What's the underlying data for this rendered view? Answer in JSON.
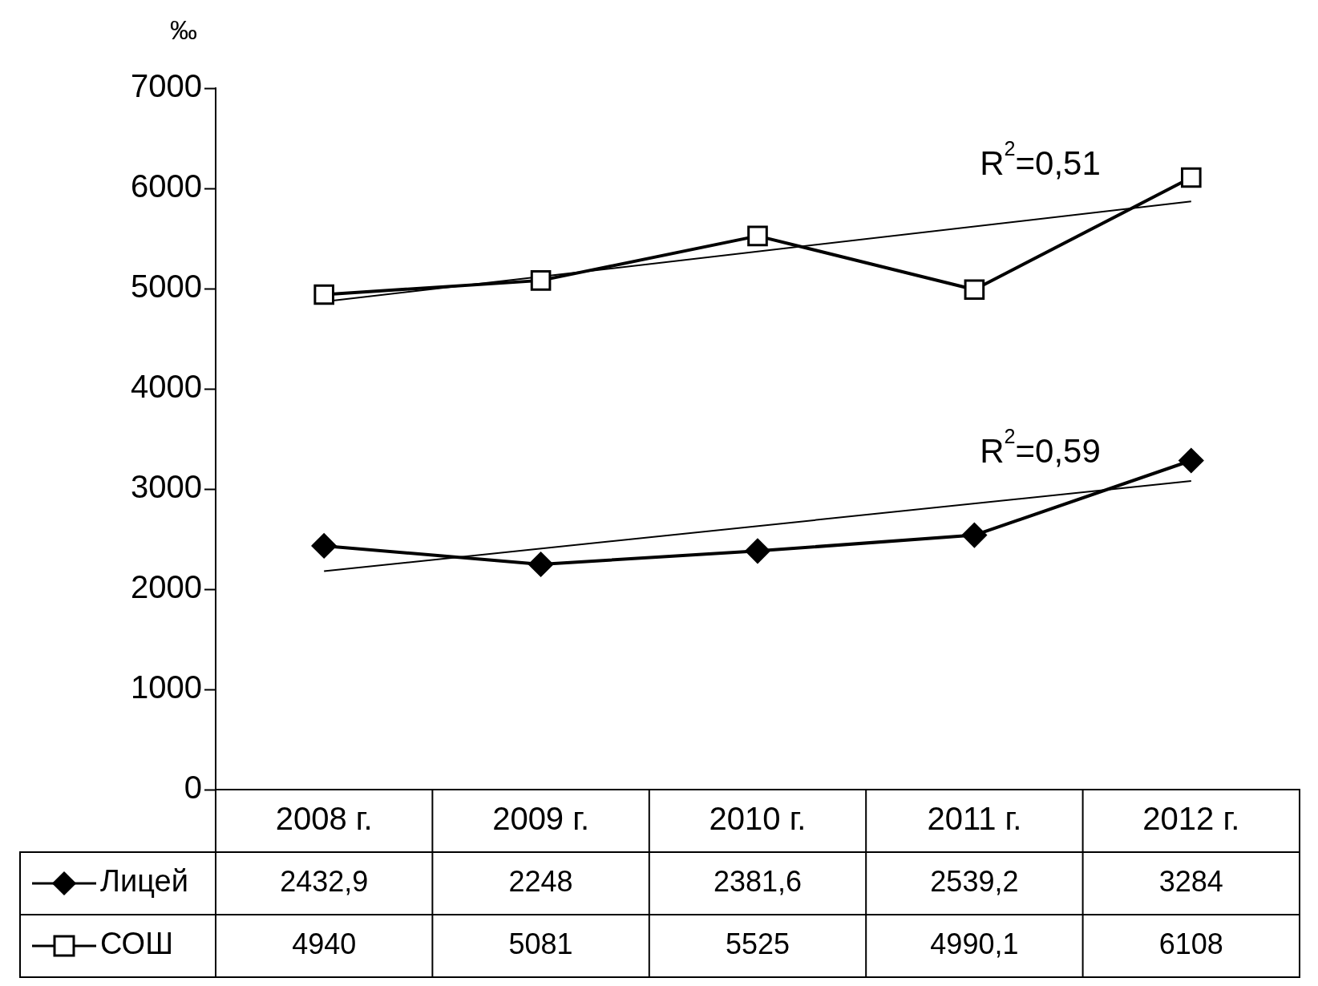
{
  "chart_data": {
    "type": "line",
    "ylabel": "‰",
    "categories": [
      "2008 г.",
      "2009 г.",
      "2010 г.",
      "2011 г.",
      "2012 г."
    ],
    "ylim": [
      0,
      7000
    ],
    "yticks": [
      0,
      1000,
      2000,
      3000,
      4000,
      5000,
      6000,
      7000
    ],
    "grid": false,
    "legend": "bottom",
    "series": [
      {
        "name": "Лицей",
        "color": "#000000",
        "marker": "diamond",
        "values": [
          2432.9,
          2248,
          2381.6,
          2539.2,
          3284
        ],
        "value_labels": [
          "2432,9",
          "2248",
          "2381,6",
          "2539,2",
          "3284"
        ]
      },
      {
        "name": "СОШ",
        "color": "#000000",
        "marker": "square",
        "values": [
          4940,
          5081,
          5525,
          4990.1,
          6108
        ],
        "value_labels": [
          "4940",
          "5081",
          "5525",
          "4990,1",
          "6108"
        ]
      },
      {
        "type": "line",
        "color": "#000000",
        "marker": "none",
        "x": [
          "2008 г.",
          "2012 г."
        ],
        "values": [
          2180,
          3080
        ]
      },
      {
        "type": "line",
        "color": "#000000",
        "marker": "none",
        "x": [
          "2008 г.",
          "2012 г."
        ],
        "values": [
          4870,
          5870
        ]
      }
    ],
    "annotations": [
      "R$^{2}$=0,51",
      "R$^{2}$=0,59"
    ]
  }
}
